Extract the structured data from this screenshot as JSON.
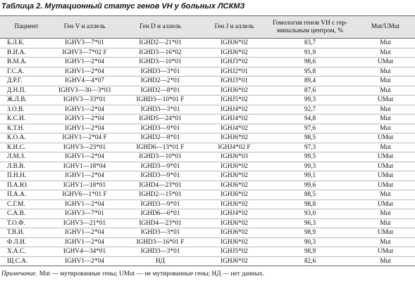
{
  "title": "Таблица 2. Мутационный статус генов VH у больных ЛСКМЗ",
  "table": {
    "header": [
      "Пациент",
      "Ген V и аллель",
      "Ген D и аллель",
      "Ген J и аллель",
      "Гомология генов VH с гер-минальным центром, %",
      "Mut/UMut"
    ],
    "rows": [
      [
        "Б.Л.К.",
        "IGHV3—7*01",
        "IGHD2—21*01",
        "IGHJ6*02",
        "83,7",
        "Mut"
      ],
      [
        "В.И.А.",
        "IGHV3—7*02 F",
        "IGHD3—16*02",
        "IGHJ6*02",
        "91,9",
        "Mut"
      ],
      [
        "В.М.А.",
        "IGHV1—2*04",
        "IGHD3—10*01",
        "IGHJ3*02",
        "98,6",
        "UMut"
      ],
      [
        "Г.С.А.",
        "IGHV1—2*04",
        "IGHD3—3*01",
        "IGHJ2*01",
        "95,8",
        "Mut"
      ],
      [
        "Д.Р.Г.",
        "IGHV4—4*07",
        "IGHD2—2*01",
        "IGHJ3*01",
        "89,4",
        "Mut"
      ],
      [
        "Д.Н.П.",
        "IGHV3—30—3*03",
        "IGHD2—8*01",
        "IGHJ6*02",
        "87,6",
        "Mut"
      ],
      [
        "Ж.Л.В.",
        "IGHV3—33*01",
        "IGHD3—10*01 F",
        "IGHJ5*02",
        "99,3",
        "UMut"
      ],
      [
        "З.О.В.",
        "IGHV1—2*04",
        "IGHD3—3*01",
        "IGHJ4*02",
        "92,7",
        "Mut"
      ],
      [
        "К.С.И.",
        "IGHV1—2*04",
        "IGHD5—24*01",
        "IGHJ4*02",
        "94,8",
        "Mut"
      ],
      [
        "К.Т.Н.",
        "IGHV1—2*04",
        "IGHD3—9*01",
        "IGHJ4*02",
        "97,6",
        "Mut"
      ],
      [
        "К.О.А.",
        "IGHV1—2*04 F",
        "IGHD2—8*01",
        "IGHJ6*02",
        "98,5",
        "UMut"
      ],
      [
        "К.И.С.",
        "IGHV3—23*01",
        "IGHD6—13*01 F",
        "IGHJ4*02 F",
        "97,3",
        "Mut"
      ],
      [
        "Л.М.З.",
        "IGHV1—2*04",
        "IGHD3—10*01",
        "IGHJ6*03",
        "99,5",
        "UMut"
      ],
      [
        "Л.В.В.",
        "IGHV1—18*04",
        "IGHD3—9*01",
        "IGHJ6*02",
        "99,3",
        "UMut"
      ],
      [
        "П.Н.Н.",
        "IGHV1—2*04",
        "IGHD3—9*01",
        "IGHJ6*02",
        "99,1",
        "UMut"
      ],
      [
        "П.А.Ю.",
        "IGHV1—18*01",
        "IGHD4—23*01",
        "IGHJ6*02",
        "99,6",
        "UMut"
      ],
      [
        "П.А.А.",
        "IGHV6—1*01 F",
        "IGHD2—15*01",
        "IGHJ6*02",
        "88,5",
        "Mut"
      ],
      [
        "С.Г.М.",
        "IGHV1—2*04",
        "IGHD3—9*01",
        "IGHJ6*02",
        "98,8",
        "UMut"
      ],
      [
        "С.А.В.",
        "IGHV3—7*01",
        "IGHD6—6*01",
        "IGHJ4*02",
        "93,0",
        "Mut"
      ],
      [
        "Т.О.Ф.",
        "IGHV3—21*01",
        "IGHD4—23*01",
        "IGHJ6*02",
        "96,3",
        "Mut"
      ],
      [
        "Т.В.И.",
        "IGHV1—2*04",
        "IGHD3—3*01",
        "IGHJ6*02",
        "98,9",
        "UMut"
      ],
      [
        "Ф.Л.И.",
        "IGHV1—2*04",
        "IGHD3—16*01 F",
        "IGHJ6*02",
        "90,3",
        "Mut"
      ],
      [
        "Х.А.С.",
        "IGHV4—34*01",
        "IGHD3—3*01",
        "IGHJ5*02",
        "98,9",
        "UMut"
      ],
      [
        "Щ.С.А.",
        "IGHV1—2*04",
        "НД",
        "IGHJ6*02",
        "82,6",
        "Mut"
      ]
    ]
  },
  "note": {
    "label": "Примечание.",
    "text": "Mut — мутированные гены; UMut — не мутированные гены; НД — нет данных."
  }
}
